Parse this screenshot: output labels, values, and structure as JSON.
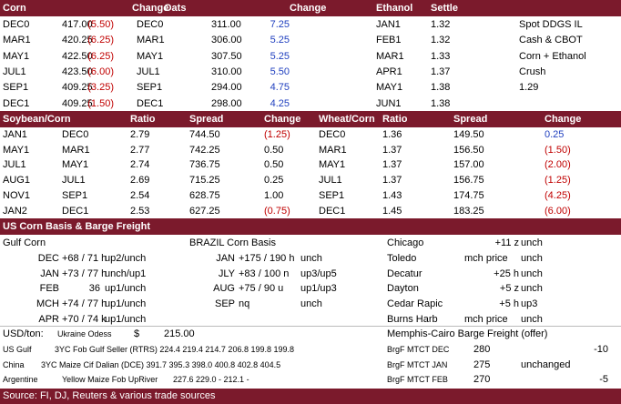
{
  "grains": {
    "headers": [
      "Corn",
      "Change",
      "Oats",
      "Change",
      "Ethanol",
      "Settle"
    ],
    "rows": [
      [
        "DEC0",
        "417.00",
        "(5.50)",
        "DEC0",
        "311.00",
        "7.25",
        "JAN1",
        "1.32",
        "Spot DDGS IL"
      ],
      [
        "MAR1",
        "420.25",
        "(6.25)",
        "MAR1",
        "306.00",
        "5.25",
        "FEB1",
        "1.32",
        "Cash & CBOT"
      ],
      [
        "MAY1",
        "422.50",
        "(6.25)",
        "MAY1",
        "307.50",
        "5.25",
        "MAR1",
        "1.33",
        "Corn + Ethanol"
      ],
      [
        "JUL1",
        "423.50",
        "(6.00)",
        "JUL1",
        "310.00",
        "5.50",
        "APR1",
        "1.37",
        "Crush"
      ],
      [
        "SEP1",
        "409.25",
        "(3.25)",
        "SEP1",
        "294.00",
        "4.75",
        "MAY1",
        "1.38",
        "1.29"
      ],
      [
        "DEC1",
        "409.25",
        "(1.50)",
        "DEC1",
        "298.00",
        "4.25",
        "JUN1",
        "1.38"
      ]
    ]
  },
  "ratios": {
    "headers": [
      "Soybean/Corn",
      "Ratio",
      "Spread",
      "Change",
      "Wheat/Corn",
      "Ratio",
      "Spread",
      "Change"
    ],
    "rows": [
      [
        "JAN1",
        "DEC0",
        "2.79",
        "744.50",
        "(1.25)",
        "DEC0",
        "1.36",
        "149.50",
        "0.25"
      ],
      [
        "MAY1",
        "MAR1",
        "2.77",
        "742.25",
        "0.50",
        "MAR1",
        "1.37",
        "156.50",
        "(1.50)"
      ],
      [
        "JUL1",
        "MAY1",
        "2.74",
        "736.75",
        "0.50",
        "MAY1",
        "1.37",
        "157.00",
        "(2.00)"
      ],
      [
        "AUG1",
        "JUL1",
        "2.69",
        "715.25",
        "0.25",
        "JUL1",
        "1.37",
        "156.75",
        "(1.25)"
      ],
      [
        "NOV1",
        "SEP1",
        "2.54",
        "628.75",
        "1.00",
        "SEP1",
        "1.43",
        "174.75",
        "(4.25)"
      ],
      [
        "JAN2",
        "DEC1",
        "2.53",
        "627.25",
        "(0.75)",
        "DEC1",
        "1.45",
        "183.25",
        "(6.00)"
      ]
    ]
  },
  "basis": {
    "title": "US Corn Basis & Barge Freight",
    "rows": [
      [
        "Gulf Corn",
        "BRAZIL Corn Basis",
        "Chicago",
        "+11 z",
        "unch"
      ],
      [
        "DEC",
        "+68 / 71 h",
        "up2/unch",
        "JAN",
        "+175 / 190 h",
        "unch",
        "Toledo",
        "mch price",
        "unch"
      ],
      [
        "JAN",
        "+73 / 77 h",
        "unch/up1",
        "JLY",
        "+83 / 100 n",
        "up3/up5",
        "Decatur",
        "+25 h",
        "unch"
      ],
      [
        "FEB",
        "36",
        "up1/unch",
        "AUG",
        "+75 / 90 u",
        "up1/up3",
        "Dayton",
        "+5 z",
        "unch"
      ],
      [
        "MCH",
        "+74 / 77 h",
        "up1/unch",
        "SEP",
        "nq",
        "unch",
        "Cedar Rapic",
        "+5 h",
        "up3"
      ],
      [
        "APR",
        "+70 / 74 k",
        "up1/unch",
        "Burns Harb",
        "mch price",
        "unch"
      ]
    ]
  },
  "freight": {
    "usd_ton": [
      "USD/ton:",
      "Ukraine Odess",
      "$",
      "215.00",
      "Memphis-Cairo Barge Freight (offer)"
    ],
    "rows": [
      [
        "US Gulf",
        "3YC Fob Gulf Seller (RTRS) 224.4 219.4 214.7 206.8 199.8 199.8",
        "BrgF MTCT DEC",
        "280",
        "-10"
      ],
      [
        "China",
        "3YC Maize Cif Dalian (DCE) 391.7 395.3 398.0 400.8 402.8 404.5",
        "BrgF MTCT JAN",
        "275",
        "unchanged"
      ],
      [
        "Argentine",
        "Yellow Maize Fob UpRiver",
        "227.6 229.0 - 212.1 -",
        "BrgF MTCT FEB",
        "270",
        "-5"
      ]
    ],
    "source": "Source: FI, DJ, Reuters & various trade sources"
  }
}
